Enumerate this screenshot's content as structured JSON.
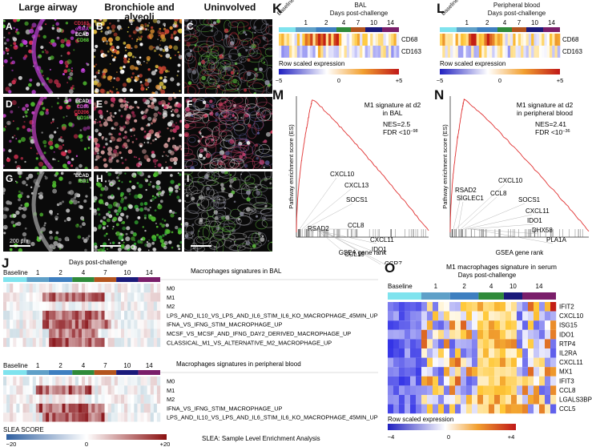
{
  "microscopy": {
    "col_titles": [
      "Large airway",
      "Bronchiole and\nalveoli",
      "Uninvolved"
    ],
    "panel_letters": [
      "A",
      "B",
      "C",
      "D",
      "E",
      "F",
      "G",
      "H",
      "I"
    ],
    "legend_row1": [
      {
        "text": "CD163",
        "color": "#e0304a"
      },
      {
        "text": "αSMA",
        "color": "#c040d8"
      },
      {
        "text": "ECAD",
        "color": "#ffffff"
      },
      {
        "text": "CD68",
        "color": "#60d840"
      }
    ],
    "legend_row2": [
      {
        "text": "ECAD",
        "color": "#ffffff"
      },
      {
        "text": "CD86",
        "color": "#d060d0"
      },
      {
        "text": "CD206",
        "color": "#e0304a"
      },
      {
        "text": "CD16",
        "color": "#60d840"
      }
    ],
    "legend_row3": [
      {
        "text": "ECAD",
        "color": "#ffffff"
      },
      {
        "text": "IBA1",
        "color": "#60d840"
      }
    ],
    "scale_label": "200 μm"
  },
  "panelK": {
    "letter": "K",
    "title": "BAL",
    "subtitle": "Days post-challenge",
    "baseline": "Baseline",
    "days": [
      "1",
      "2",
      "4",
      "7",
      "10",
      "14"
    ],
    "rows": [
      "CD68",
      "CD163"
    ]
  },
  "panelL": {
    "letter": "L",
    "title": "Peripheral blood",
    "subtitle": "Days post-challenge",
    "baseline": "Baseline",
    "days": [
      "1",
      "2",
      "4",
      "7",
      "10",
      "14"
    ],
    "rows": [
      "CD68",
      "CD163"
    ]
  },
  "rowscale": {
    "label": "Row scaled expression",
    "min": "−5",
    "mid": "0",
    "max": "+5"
  },
  "panelM": {
    "letter": "M",
    "title1": "M1 signature at d2",
    "title2": "in BAL",
    "nes": "NES=2.5",
    "fdr": "FDR <10",
    "fdr_exp": "−98",
    "ylabel": "Pathway enrichment score (ES)",
    "xlabel": "GSEA gene rank",
    "genes": [
      "CXCL10",
      "CXCL13",
      "SOCS1",
      "RSAD2",
      "CCL8",
      "CXCL11",
      "IDO1",
      "CCL19",
      "CCR7",
      "CXCL9"
    ]
  },
  "panelN": {
    "letter": "N",
    "title1": "M1 signature at d2",
    "title2": "in peripheral blood",
    "nes": "NES=2.41",
    "fdr": "FDR <10",
    "fdr_exp": "−36",
    "ylabel": "Pathway enrichment score (ES)",
    "xlabel": "GSEA gene rank",
    "genes": [
      "RSAD2",
      "CXCL10",
      "SIGLEC1",
      "CCL8",
      "SOCS1",
      "CXCL11",
      "IDO1",
      "DHX58",
      "PLA1A"
    ]
  },
  "panelJ": {
    "letter": "J",
    "subtitle": "Days post-challenge",
    "baseline": "Baseline",
    "days": [
      "1",
      "2",
      "4",
      "7",
      "10",
      "14"
    ],
    "title_bal": "Macrophages signatures in BAL",
    "rows_bal": [
      "M0",
      "M1",
      "M2",
      "LPS_AND_IL10_VS_LPS_AND_IL6_STIM_IL6_KO_MACROPHAGE_45MIN_UP",
      "IFNA_VS_IFNG_STIM_MACROPHAGE_UP",
      "MCSF_VS_MCSF_AND_IFNG_DAY2_DERIVED_MACROPHAGE_UP",
      "CLASSICAL_M1_VS_ALTERNATIVE_M2_MACROPHAGE_UP"
    ],
    "title_pb": "Macrophages signatures in peripheral blood",
    "rows_pb": [
      "M0",
      "M1",
      "M2",
      "IFNA_VS_IFNG_STIM_MACROPHAGE_UP",
      "LPS_AND_IL10_VS_LPS_AND_IL6_STIM_IL6_KO_MACROPHAGE_45MIN_UP"
    ],
    "slea_label": "SLEA SCORE",
    "slea_min": "−20",
    "slea_mid": "0",
    "slea_max": "+20",
    "slea_note": "SLEA: Sample Level Enrichment Analysis"
  },
  "panelO": {
    "letter": "O",
    "title": "M1 macrophages signature in serum",
    "subtitle": "Days post-challenge",
    "baseline": "Baseline",
    "days": [
      "1",
      "2",
      "4",
      "10",
      "14"
    ],
    "rows": [
      "IFIT2",
      "CXCL10",
      "ISG15",
      "IDO1",
      "RTP4",
      "IL2RA",
      "CXCL11",
      "MX1",
      "IFIT3",
      "CCL8",
      "LGALS3BP",
      "CCL5"
    ],
    "scale_label": "Row scaled expression",
    "scale_min": "−4",
    "scale_mid": "0",
    "scale_max": "+4"
  },
  "colors": {
    "baseline": "#7fe3ee",
    "d1": "#5fa0c8",
    "d2": "#3e7fc0",
    "d4": "#2f8a3a",
    "d7": "#b3541e",
    "d10": "#1a1a7a",
    "d14": "#7a1e6a"
  }
}
